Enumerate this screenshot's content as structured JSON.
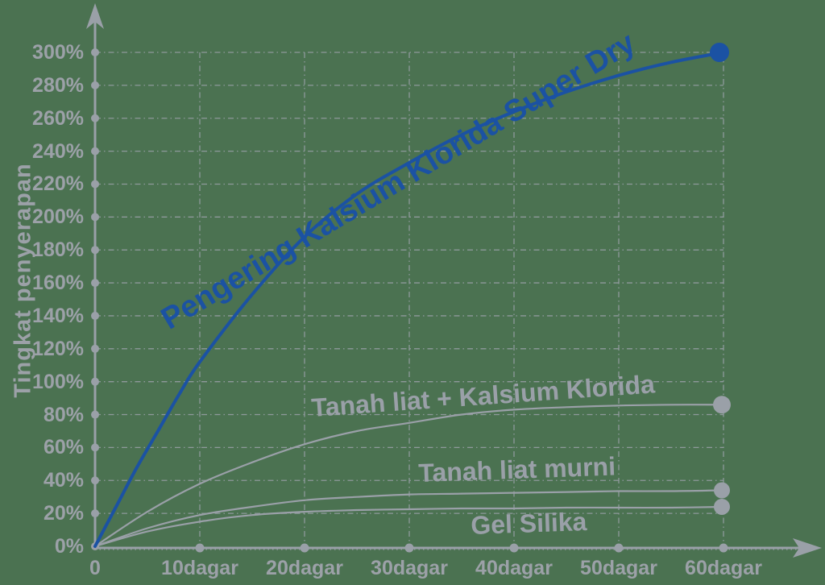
{
  "background_color": "#4b7251",
  "axis_color": "#9aa0a8",
  "grid_color": "#9aa0a8",
  "text_color": "#9ca1a8",
  "accent_blue": "#1b52a3",
  "chart_data": {
    "type": "line",
    "title": "",
    "xlabel": "",
    "ylabel": "Tingkat penyerapan",
    "x_unit": "dagar",
    "xlim": [
      0,
      60
    ],
    "ylim": [
      0,
      300
    ],
    "grid": true,
    "grid_style": "dash-dot",
    "x_ticks": [
      {
        "v": 0,
        "label": "0"
      },
      {
        "v": 10,
        "label": "10dagar"
      },
      {
        "v": 20,
        "label": "20dagar"
      },
      {
        "v": 30,
        "label": "30dagar"
      },
      {
        "v": 40,
        "label": "40dagar"
      },
      {
        "v": 50,
        "label": "50dagar"
      },
      {
        "v": 60,
        "label": "60dagar"
      }
    ],
    "y_ticks": [
      {
        "v": 0,
        "label": "0%"
      },
      {
        "v": 20,
        "label": "20%"
      },
      {
        "v": 40,
        "label": "40%"
      },
      {
        "v": 60,
        "label": "60%"
      },
      {
        "v": 80,
        "label": "80%"
      },
      {
        "v": 100,
        "label": "100%"
      },
      {
        "v": 120,
        "label": "120%"
      },
      {
        "v": 140,
        "label": "140%"
      },
      {
        "v": 160,
        "label": "160%"
      },
      {
        "v": 180,
        "label": "180%"
      },
      {
        "v": 200,
        "label": "200%"
      },
      {
        "v": 220,
        "label": "220%"
      },
      {
        "v": 240,
        "label": "240%"
      },
      {
        "v": 260,
        "label": "260%"
      },
      {
        "v": 280,
        "label": "280%"
      },
      {
        "v": 300,
        "label": "300%"
      }
    ],
    "series": [
      {
        "name": "Pengering Kalsium Klorida Super Dry",
        "color": "#1b52a3",
        "line_width": 4,
        "end_dot_radius": 12,
        "end_value": 300,
        "points": [
          [
            0,
            0
          ],
          [
            2,
            24
          ],
          [
            4,
            48
          ],
          [
            6,
            70
          ],
          [
            8,
            92
          ],
          [
            10,
            112
          ],
          [
            15,
            153
          ],
          [
            20,
            188
          ],
          [
            25,
            214
          ],
          [
            30,
            233
          ],
          [
            35,
            250
          ],
          [
            40,
            264
          ],
          [
            45,
            276
          ],
          [
            50,
            286
          ],
          [
            55,
            294
          ],
          [
            60,
            300
          ]
        ]
      },
      {
        "name": "Tanah liat + Kalsium Klorida",
        "color": "#9aa0a8",
        "line_width": 2.2,
        "end_dot_radius": 11,
        "end_value": 86,
        "points": [
          [
            0,
            0
          ],
          [
            5,
            21
          ],
          [
            10,
            38
          ],
          [
            15,
            51
          ],
          [
            20,
            62
          ],
          [
            25,
            70
          ],
          [
            30,
            75
          ],
          [
            35,
            80
          ],
          [
            40,
            83
          ],
          [
            45,
            84.5
          ],
          [
            50,
            85.5
          ],
          [
            55,
            86
          ],
          [
            60,
            86
          ]
        ]
      },
      {
        "name": "Tanah liat murni",
        "color": "#9aa0a8",
        "line_width": 2.2,
        "end_dot_radius": 10,
        "end_value": 34,
        "points": [
          [
            0,
            0
          ],
          [
            5,
            11
          ],
          [
            10,
            19
          ],
          [
            15,
            24
          ],
          [
            20,
            28
          ],
          [
            25,
            30
          ],
          [
            30,
            31.5
          ],
          [
            35,
            32
          ],
          [
            40,
            32.5
          ],
          [
            45,
            33
          ],
          [
            50,
            33.5
          ],
          [
            55,
            33.5
          ],
          [
            60,
            34
          ]
        ]
      },
      {
        "name": "Gel Silika",
        "color": "#9aa0a8",
        "line_width": 2.2,
        "end_dot_radius": 10,
        "end_value": 24,
        "points": [
          [
            0,
            0
          ],
          [
            5,
            9
          ],
          [
            10,
            15
          ],
          [
            15,
            19
          ],
          [
            20,
            21
          ],
          [
            25,
            22
          ],
          [
            30,
            22.5
          ],
          [
            35,
            23
          ],
          [
            40,
            23
          ],
          [
            45,
            23.5
          ],
          [
            50,
            23.5
          ],
          [
            55,
            23.5
          ],
          [
            60,
            24
          ]
        ]
      }
    ]
  }
}
